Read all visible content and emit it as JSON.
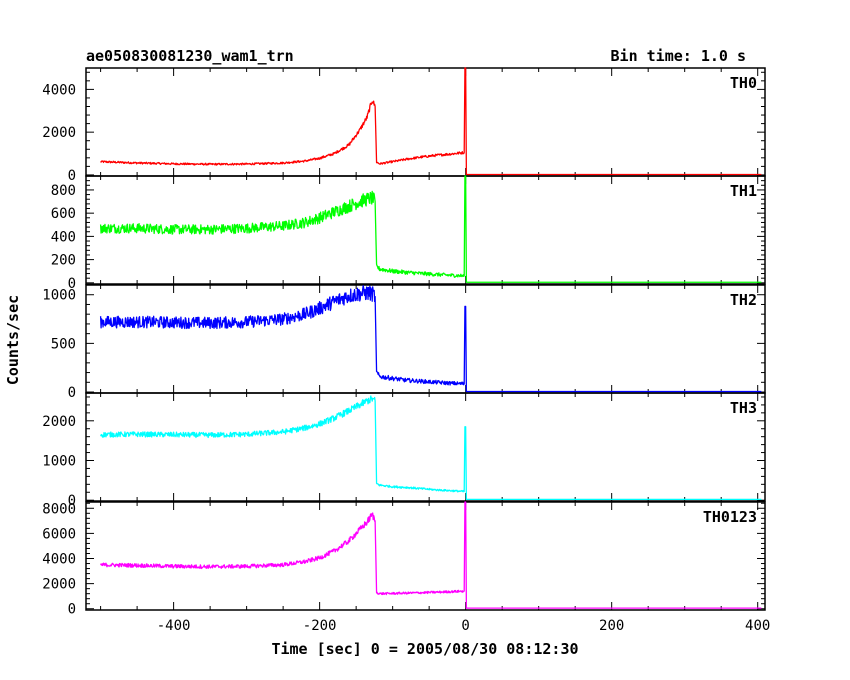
{
  "chart_data": {
    "type": "line",
    "title": "ae050830081230_wam1_trn",
    "bin_time": "Bin time: 1.0 s",
    "xlabel": "Time [sec] 0 = 2005/08/30 08:12:30",
    "ylabel": "Counts/sec",
    "xlim": [
      -520,
      410
    ],
    "xticks": [
      "-400",
      "-200",
      "0",
      "200",
      "400"
    ],
    "xtick_values": [
      -400,
      -200,
      0,
      200,
      400
    ],
    "grid": false,
    "panels": [
      {
        "name": "TH0",
        "color": "#ff0000",
        "ylim": [
          -50,
          5000
        ],
        "yticks": [
          "0",
          "2000",
          "4000"
        ],
        "ytick_values": [
          0,
          2000,
          4000
        ],
        "points": [
          [
            -500,
            620
          ],
          [
            -450,
            560
          ],
          [
            -400,
            520
          ],
          [
            -350,
            500
          ],
          [
            -300,
            510
          ],
          [
            -250,
            560
          ],
          [
            -220,
            650
          ],
          [
            -200,
            780
          ],
          [
            -180,
            1000
          ],
          [
            -160,
            1400
          ],
          [
            -145,
            2100
          ],
          [
            -135,
            2700
          ],
          [
            -128,
            3500
          ],
          [
            -124,
            3200
          ],
          [
            -122,
            600
          ],
          [
            -118,
            520
          ],
          [
            -100,
            620
          ],
          [
            -80,
            740
          ],
          [
            -60,
            840
          ],
          [
            -40,
            920
          ],
          [
            -20,
            980
          ],
          [
            -2,
            1050
          ],
          [
            -1,
            5000
          ],
          [
            0,
            5000
          ],
          [
            1,
            20
          ],
          [
            405,
            20
          ]
        ]
      },
      {
        "name": "TH1",
        "color": "#00ff00",
        "ylim": [
          -10,
          920
        ],
        "yticks": [
          "0",
          "200",
          "400",
          "600",
          "800"
        ],
        "ytick_values": [
          0,
          200,
          400,
          600,
          800
        ],
        "points": [
          [
            -500,
            470
          ],
          [
            -450,
            470
          ],
          [
            -400,
            460
          ],
          [
            -350,
            460
          ],
          [
            -300,
            470
          ],
          [
            -250,
            490
          ],
          [
            -220,
            520
          ],
          [
            -200,
            560
          ],
          [
            -180,
            610
          ],
          [
            -160,
            660
          ],
          [
            -145,
            700
          ],
          [
            -135,
            720
          ],
          [
            -128,
            730
          ],
          [
            -124,
            700
          ],
          [
            -122,
            140
          ],
          [
            -118,
            120
          ],
          [
            -100,
            100
          ],
          [
            -80,
            90
          ],
          [
            -60,
            80
          ],
          [
            -40,
            72
          ],
          [
            -20,
            65
          ],
          [
            -2,
            60
          ],
          [
            -1,
            920
          ],
          [
            0,
            920
          ],
          [
            1,
            5
          ],
          [
            405,
            5
          ]
        ]
      },
      {
        "name": "TH2",
        "color": "#0000ff",
        "ylim": [
          -10,
          1100
        ],
        "yticks": [
          "0",
          "500",
          "1000"
        ],
        "ytick_values": [
          0,
          500,
          1000
        ],
        "points": [
          [
            -500,
            720
          ],
          [
            -450,
            720
          ],
          [
            -400,
            715
          ],
          [
            -350,
            710
          ],
          [
            -300,
            720
          ],
          [
            -250,
            750
          ],
          [
            -220,
            800
          ],
          [
            -200,
            860
          ],
          [
            -180,
            930
          ],
          [
            -160,
            990
          ],
          [
            -145,
            1010
          ],
          [
            -135,
            1020
          ],
          [
            -128,
            1010
          ],
          [
            -124,
            980
          ],
          [
            -122,
            200
          ],
          [
            -118,
            160
          ],
          [
            -100,
            140
          ],
          [
            -80,
            120
          ],
          [
            -60,
            110
          ],
          [
            -40,
            100
          ],
          [
            -20,
            90
          ],
          [
            -2,
            85
          ],
          [
            -1,
            880
          ],
          [
            0,
            880
          ],
          [
            1,
            5
          ],
          [
            405,
            5
          ]
        ]
      },
      {
        "name": "TH3",
        "color": "#00ffff",
        "ylim": [
          -20,
          2700
        ],
        "yticks": [
          "0",
          "1000",
          "2000"
        ],
        "ytick_values": [
          0,
          1000,
          2000
        ],
        "points": [
          [
            -500,
            1650
          ],
          [
            -450,
            1660
          ],
          [
            -400,
            1650
          ],
          [
            -350,
            1640
          ],
          [
            -300,
            1660
          ],
          [
            -250,
            1720
          ],
          [
            -220,
            1820
          ],
          [
            -200,
            1920
          ],
          [
            -180,
            2070
          ],
          [
            -160,
            2250
          ],
          [
            -145,
            2400
          ],
          [
            -135,
            2500
          ],
          [
            -128,
            2550
          ],
          [
            -124,
            2500
          ],
          [
            -122,
            420
          ],
          [
            -118,
            380
          ],
          [
            -100,
            340
          ],
          [
            -80,
            320
          ],
          [
            -60,
            290
          ],
          [
            -40,
            260
          ],
          [
            -20,
            240
          ],
          [
            -2,
            220
          ],
          [
            -1,
            1850
          ],
          [
            0,
            1850
          ],
          [
            1,
            20
          ],
          [
            405,
            20
          ]
        ]
      },
      {
        "name": "TH0123",
        "color": "#ff00ff",
        "ylim": [
          -100,
          8500
        ],
        "yticks": [
          "0",
          "2000",
          "4000",
          "6000",
          "8000"
        ],
        "ytick_values": [
          0,
          2000,
          4000,
          6000,
          8000
        ],
        "points": [
          [
            -500,
            3500
          ],
          [
            -450,
            3450
          ],
          [
            -400,
            3380
          ],
          [
            -350,
            3350
          ],
          [
            -300,
            3380
          ],
          [
            -250,
            3500
          ],
          [
            -220,
            3750
          ],
          [
            -200,
            4050
          ],
          [
            -180,
            4600
          ],
          [
            -160,
            5400
          ],
          [
            -145,
            6300
          ],
          [
            -135,
            6900
          ],
          [
            -128,
            7500
          ],
          [
            -124,
            7000
          ],
          [
            -122,
            1300
          ],
          [
            -118,
            1200
          ],
          [
            -100,
            1220
          ],
          [
            -80,
            1250
          ],
          [
            -60,
            1280
          ],
          [
            -40,
            1320
          ],
          [
            -20,
            1360
          ],
          [
            -2,
            1400
          ],
          [
            -1,
            8500
          ],
          [
            0,
            8500
          ],
          [
            1,
            50
          ],
          [
            405,
            50
          ]
        ]
      }
    ]
  }
}
